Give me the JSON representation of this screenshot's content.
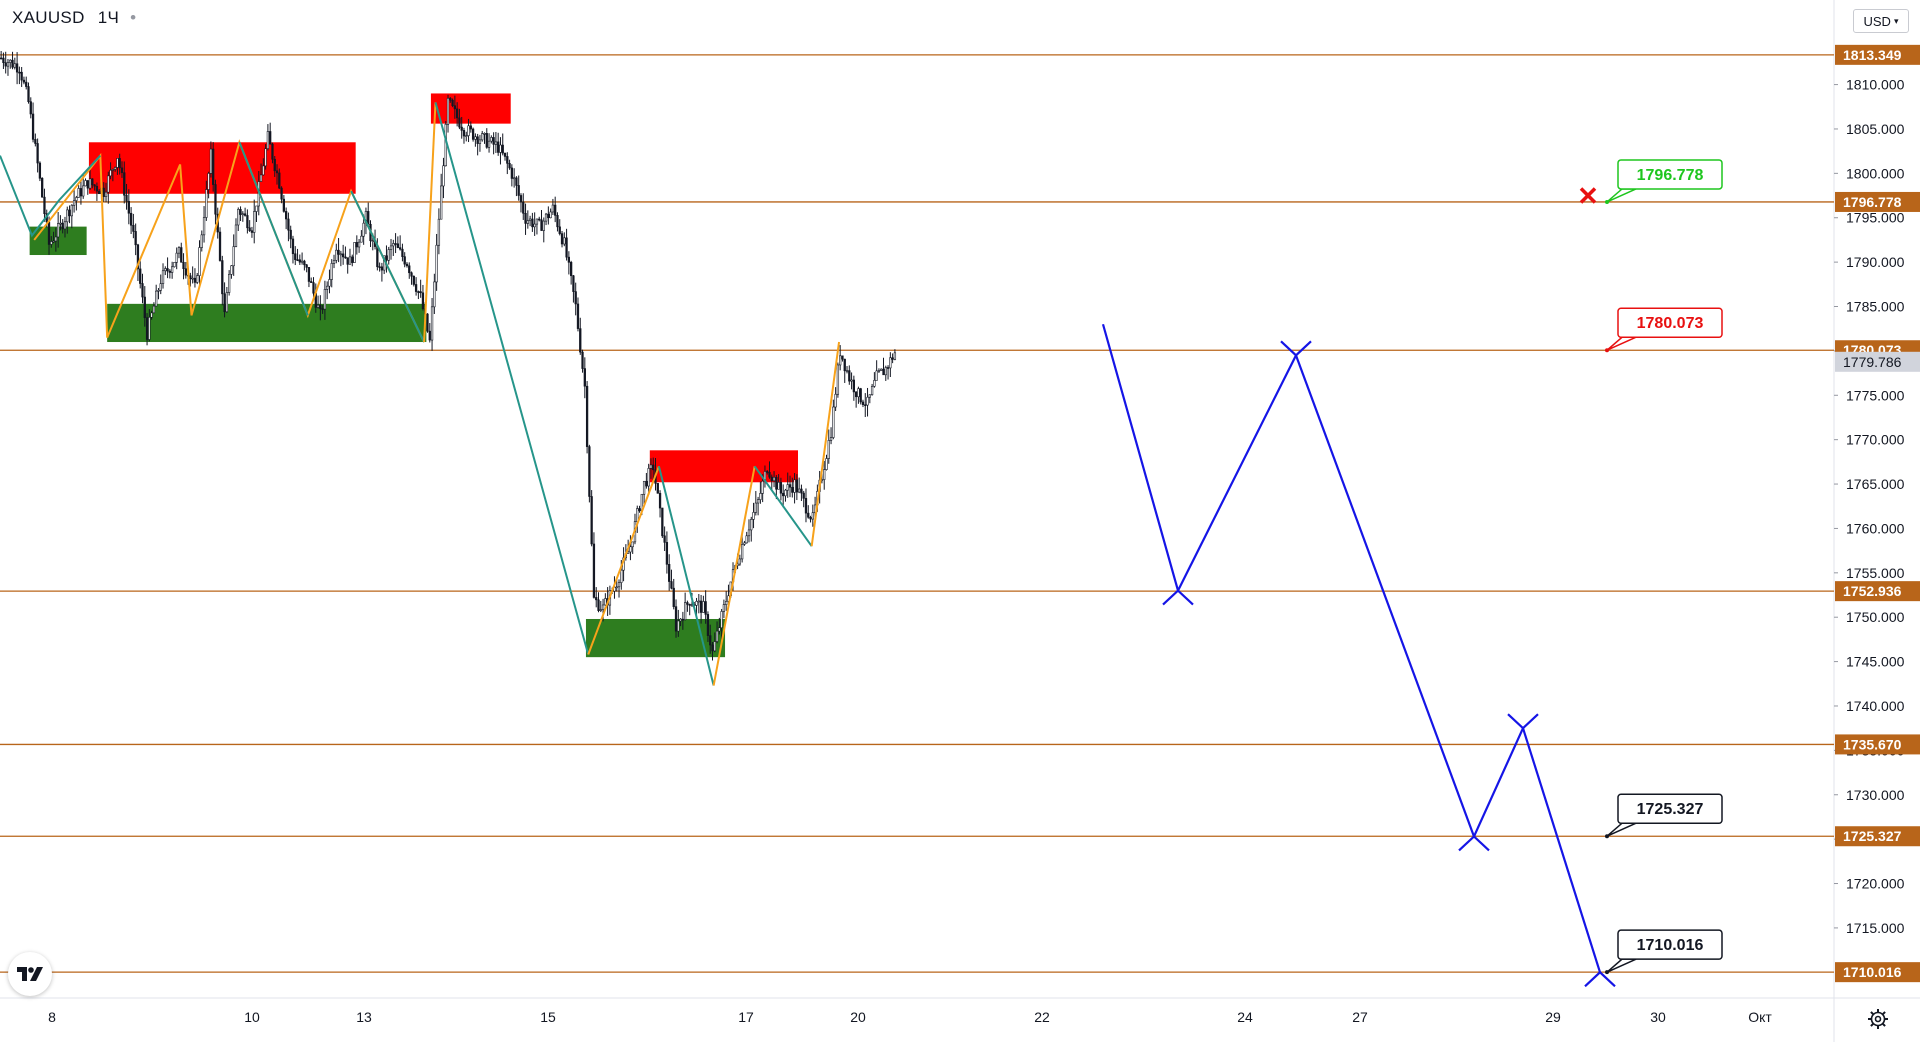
{
  "header": {
    "symbol": "XAUUSD",
    "interval": "1Ч",
    "currency": "USD"
  },
  "colors": {
    "up": "#ffffff",
    "down": "#131722",
    "wick": "#131722",
    "level_line": "#b8651a",
    "level_label_bg": "#b8651a",
    "supply_zone": "#ff0000",
    "demand_zone": "#2e7d1f",
    "wave_orange": "#f7a21b",
    "wave_teal": "#26958a",
    "forecast": "#1515e6",
    "current_price_bg": "#d1d4dc"
  },
  "chart_data": {
    "type": "candlestick",
    "symbol": "XAUUSD",
    "timeframe": "1Ч",
    "ylim": [
      1703.5,
      1817.5
    ],
    "x_ticks": [
      "8",
      "10",
      "13",
      "15",
      "17",
      "20",
      "22",
      "24",
      "27",
      "29",
      "30",
      "Окт"
    ],
    "y_ticks": [
      "1810.000",
      "1805.000",
      "1800.000",
      "1795.000",
      "1790.000",
      "1785.000",
      "1780.000",
      "1775.000",
      "1770.000",
      "1765.000",
      "1760.000",
      "1755.000",
      "1750.000",
      "1745.000",
      "1740.000",
      "1735.000",
      "1730.000",
      "1725.000",
      "1720.000",
      "1715.000"
    ],
    "levels": [
      {
        "price": 1813.349,
        "label": "1813.349"
      },
      {
        "price": 1796.778,
        "label": "1796.778"
      },
      {
        "price": 1780.073,
        "label": "1780.073"
      },
      {
        "price": 1752.936,
        "label": "1752.936"
      },
      {
        "price": 1735.67,
        "label": "1735.670"
      },
      {
        "price": 1725.327,
        "label": "1725.327"
      },
      {
        "price": 1710.016,
        "label": "1710.016"
      }
    ],
    "current_price": {
      "price": 1779.786,
      "label": "1779.786"
    },
    "price_path_keyframes": [
      [
        0,
        1813
      ],
      [
        8,
        1812
      ],
      [
        12,
        1808
      ],
      [
        16,
        1801
      ],
      [
        21,
        1792
      ],
      [
        26,
        1794
      ],
      [
        32,
        1797
      ],
      [
        38,
        1799
      ],
      [
        45,
        1798
      ],
      [
        51,
        1802
      ],
      [
        58,
        1793
      ],
      [
        64,
        1782
      ],
      [
        70,
        1788
      ],
      [
        78,
        1791
      ],
      [
        85,
        1787
      ],
      [
        92,
        1802
      ],
      [
        98,
        1784
      ],
      [
        104,
        1796
      ],
      [
        110,
        1794
      ],
      [
        117,
        1804
      ],
      [
        122,
        1799
      ],
      [
        128,
        1791
      ],
      [
        134,
        1789
      ],
      [
        140,
        1784
      ],
      [
        147,
        1792
      ],
      [
        153,
        1790
      ],
      [
        160,
        1795
      ],
      [
        166,
        1789
      ],
      [
        172,
        1792
      ],
      [
        178,
        1790
      ],
      [
        184,
        1786
      ],
      [
        188,
        1781
      ],
      [
        192,
        1795
      ],
      [
        196,
        1808
      ],
      [
        203,
        1805
      ],
      [
        210,
        1804
      ],
      [
        218,
        1803
      ],
      [
        224,
        1800
      ],
      [
        230,
        1795
      ],
      [
        236,
        1794
      ],
      [
        242,
        1796
      ],
      [
        247,
        1792
      ],
      [
        252,
        1785
      ],
      [
        256,
        1776
      ],
      [
        260,
        1752
      ],
      [
        264,
        1751
      ],
      [
        270,
        1754
      ],
      [
        276,
        1758
      ],
      [
        282,
        1765
      ],
      [
        286,
        1767
      ],
      [
        291,
        1758
      ],
      [
        296,
        1749
      ],
      [
        302,
        1752
      ],
      [
        308,
        1751
      ],
      [
        312,
        1746
      ],
      [
        316,
        1750
      ],
      [
        320,
        1754
      ],
      [
        326,
        1759
      ],
      [
        332,
        1763
      ],
      [
        336,
        1767
      ],
      [
        342,
        1764
      ],
      [
        348,
        1765
      ],
      [
        352,
        1763
      ],
      [
        356,
        1761
      ],
      [
        360,
        1766
      ],
      [
        364,
        1771
      ],
      [
        368,
        1780
      ],
      [
        372,
        1777
      ],
      [
        376,
        1775
      ],
      [
        380,
        1774
      ],
      [
        384,
        1777
      ],
      [
        388,
        1778
      ],
      [
        392,
        1779.8
      ]
    ],
    "zones": [
      {
        "kind": "supply",
        "from_bar": 39,
        "to_bar": 156,
        "top": 1803.5,
        "bottom": 1797.7
      },
      {
        "kind": "supply",
        "from_bar": 189,
        "to_bar": 224,
        "top": 1809.0,
        "bottom": 1805.6
      },
      {
        "kind": "supply",
        "from_bar": 285,
        "to_bar": 350,
        "top": 1768.8,
        "bottom": 1765.2
      },
      {
        "kind": "demand",
        "from_bar": 13,
        "to_bar": 38,
        "top": 1794.0,
        "bottom": 1790.8
      },
      {
        "kind": "demand",
        "from_bar": 47,
        "to_bar": 187,
        "top": 1785.3,
        "bottom": 1781.0
      },
      {
        "kind": "demand",
        "from_bar": 257,
        "to_bar": 318,
        "top": 1749.8,
        "bottom": 1745.5
      }
    ],
    "wave_lines": [
      {
        "color": "orange",
        "points": [
          [
            15,
            1792.5
          ],
          [
            44,
            1802
          ],
          [
            47,
            1781.5
          ],
          [
            79,
            1801
          ],
          [
            84,
            1784
          ],
          [
            105,
            1803.5
          ],
          [
            135,
            1784
          ],
          [
            154,
            1798
          ],
          [
            186,
            1781
          ]
        ]
      },
      {
        "color": "teal",
        "points": [
          [
            0,
            1802
          ],
          [
            14,
            1793
          ],
          [
            26,
            1797
          ],
          [
            44,
            1802
          ]
        ]
      },
      {
        "color": "teal",
        "points": [
          [
            105,
            1803.5
          ],
          [
            135,
            1784
          ]
        ]
      },
      {
        "color": "teal",
        "points": [
          [
            154,
            1798
          ],
          [
            186,
            1781
          ]
        ]
      },
      {
        "color": "orange",
        "points": [
          [
            186,
            1781
          ],
          [
            191,
            1808
          ]
        ]
      },
      {
        "color": "teal",
        "points": [
          [
            191,
            1808
          ],
          [
            258,
            1745.8
          ]
        ]
      },
      {
        "color": "orange",
        "points": [
          [
            258,
            1745.8
          ],
          [
            289,
            1767
          ]
        ]
      },
      {
        "color": "teal",
        "points": [
          [
            289,
            1767
          ],
          [
            313,
            1742.3
          ]
        ]
      },
      {
        "color": "orange",
        "points": [
          [
            313,
            1742.3
          ],
          [
            331,
            1767
          ]
        ]
      },
      {
        "color": "teal",
        "points": [
          [
            331,
            1767
          ],
          [
            356,
            1758
          ]
        ]
      },
      {
        "color": "orange",
        "points": [
          [
            356,
            1758
          ],
          [
            368,
            1781
          ]
        ]
      }
    ],
    "forecast_path": [
      [
        1103,
        1783.0
      ],
      [
        1178,
        1753.0
      ],
      [
        1296,
        1779.5
      ],
      [
        1474,
        1725.3
      ],
      [
        1523,
        1737.5
      ],
      [
        1600,
        1710.0
      ]
    ],
    "target_labels": [
      {
        "label": "1796.778",
        "price": 1796.778,
        "style": "achieved"
      },
      {
        "label": "1780.073",
        "price": 1780.073,
        "style": "stop"
      },
      {
        "label": "1725.327",
        "price": 1725.327,
        "style": "target"
      },
      {
        "label": "1710.016",
        "price": 1710.016,
        "style": "target"
      }
    ],
    "markers": [
      {
        "kind": "cross",
        "price": 1797.5
      }
    ]
  }
}
